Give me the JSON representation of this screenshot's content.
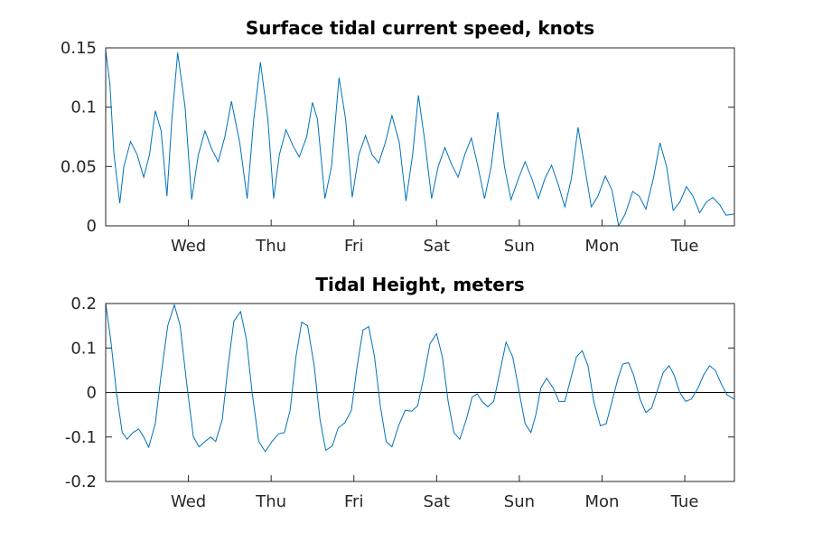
{
  "colors": {
    "series": "#0072BD",
    "axes": "#262626",
    "zero_line": "#000000"
  },
  "chart_data": [
    {
      "type": "line",
      "title": "Surface tidal current speed, knots",
      "xlabel": "",
      "ylabel": "",
      "xlim": [
        0,
        7.6
      ],
      "ylim": [
        0,
        0.15
      ],
      "x_ticks": [
        {
          "label": "Wed",
          "x": 1
        },
        {
          "label": "Thu",
          "x": 2
        },
        {
          "label": "Fri",
          "x": 3
        },
        {
          "label": "Sat",
          "x": 4
        },
        {
          "label": "Sun",
          "x": 5
        },
        {
          "label": "Mon",
          "x": 6
        },
        {
          "label": "Tue",
          "x": 7
        }
      ],
      "y_ticks": [
        {
          "label": "0",
          "y": 0
        },
        {
          "label": "0.05",
          "y": 0.05
        },
        {
          "label": "0.1",
          "y": 0.1
        },
        {
          "label": "0.15",
          "y": 0.15
        }
      ],
      "grid": false,
      "series": [
        {
          "x": [
            0.0,
            0.05,
            0.1,
            0.17,
            0.22,
            0.3,
            0.38,
            0.46,
            0.53,
            0.6,
            0.67,
            0.74,
            0.8,
            0.87,
            0.96,
            1.04,
            1.12,
            1.2,
            1.28,
            1.36,
            1.44,
            1.52,
            1.62,
            1.71,
            1.79,
            1.87,
            1.96,
            2.03,
            2.1,
            2.18,
            2.26,
            2.34,
            2.43,
            2.5,
            2.56,
            2.65,
            2.73,
            2.82,
            2.9,
            2.98,
            3.06,
            3.14,
            3.22,
            3.3,
            3.38,
            3.46,
            3.55,
            3.63,
            3.71,
            3.78,
            3.86,
            3.94,
            4.02,
            4.1,
            4.18,
            4.26,
            4.34,
            4.42,
            4.5,
            4.58,
            4.66,
            4.74,
            4.82,
            4.9,
            4.99,
            5.07,
            5.15,
            5.23,
            5.31,
            5.39,
            5.47,
            5.55,
            5.63,
            5.71,
            5.79,
            5.87,
            5.95,
            6.04,
            6.12,
            6.2,
            6.28,
            6.37,
            6.45,
            6.53,
            6.62,
            6.7,
            6.78,
            6.86,
            6.94,
            7.02,
            7.1,
            7.18,
            7.26,
            7.34,
            7.42,
            7.5,
            7.6
          ],
          "y": [
            0.148,
            0.12,
            0.06,
            0.019,
            0.05,
            0.071,
            0.06,
            0.041,
            0.06,
            0.097,
            0.08,
            0.025,
            0.09,
            0.146,
            0.1,
            0.022,
            0.06,
            0.08,
            0.065,
            0.054,
            0.075,
            0.105,
            0.07,
            0.023,
            0.09,
            0.138,
            0.09,
            0.023,
            0.06,
            0.081,
            0.068,
            0.058,
            0.075,
            0.104,
            0.09,
            0.023,
            0.05,
            0.125,
            0.09,
            0.024,
            0.06,
            0.076,
            0.06,
            0.053,
            0.07,
            0.093,
            0.07,
            0.021,
            0.06,
            0.11,
            0.07,
            0.023,
            0.05,
            0.066,
            0.052,
            0.041,
            0.06,
            0.074,
            0.05,
            0.023,
            0.05,
            0.096,
            0.05,
            0.022,
            0.04,
            0.054,
            0.04,
            0.023,
            0.04,
            0.051,
            0.035,
            0.016,
            0.04,
            0.083,
            0.05,
            0.016,
            0.025,
            0.042,
            0.03,
            0.0,
            0.01,
            0.029,
            0.025,
            0.014,
            0.04,
            0.07,
            0.05,
            0.013,
            0.02,
            0.033,
            0.025,
            0.011,
            0.02,
            0.024,
            0.018,
            0.009,
            0.01
          ]
        }
      ]
    },
    {
      "type": "line",
      "title": "Tidal Height, meters",
      "xlabel": "",
      "ylabel": "",
      "xlim": [
        0,
        7.6
      ],
      "ylim": [
        -0.2,
        0.2
      ],
      "x_ticks": [
        {
          "label": "Wed",
          "x": 1
        },
        {
          "label": "Thu",
          "x": 2
        },
        {
          "label": "Fri",
          "x": 3
        },
        {
          "label": "Sat",
          "x": 4
        },
        {
          "label": "Sun",
          "x": 5
        },
        {
          "label": "Mon",
          "x": 6
        },
        {
          "label": "Tue",
          "x": 7
        }
      ],
      "y_ticks": [
        {
          "label": "-0.2",
          "y": -0.2
        },
        {
          "label": "-0.1",
          "y": -0.1
        },
        {
          "label": "0",
          "y": 0
        },
        {
          "label": "0.1",
          "y": 0.1
        },
        {
          "label": "0.2",
          "y": 0.2
        }
      ],
      "zero_line": true,
      "grid": false,
      "series": [
        {
          "x": [
            0.0,
            0.06,
            0.13,
            0.2,
            0.26,
            0.33,
            0.4,
            0.46,
            0.52,
            0.6,
            0.67,
            0.75,
            0.83,
            0.9,
            0.98,
            1.06,
            1.13,
            1.2,
            1.27,
            1.33,
            1.41,
            1.48,
            1.55,
            1.63,
            1.7,
            1.77,
            1.85,
            1.93,
            2.01,
            2.09,
            2.16,
            2.23,
            2.3,
            2.37,
            2.44,
            2.52,
            2.59,
            2.66,
            2.74,
            2.81,
            2.89,
            2.97,
            3.04,
            3.11,
            3.18,
            3.25,
            3.32,
            3.39,
            3.46,
            3.54,
            3.62,
            3.7,
            3.77,
            3.84,
            3.92,
            4.0,
            4.07,
            4.14,
            4.21,
            4.28,
            4.36,
            4.43,
            4.49,
            4.55,
            4.62,
            4.69,
            4.77,
            4.84,
            4.92,
            5.0,
            5.07,
            5.14,
            5.2,
            5.26,
            5.33,
            5.41,
            5.48,
            5.55,
            5.62,
            5.69,
            5.76,
            5.83,
            5.9,
            5.98,
            6.05,
            6.12,
            6.19,
            6.25,
            6.32,
            6.38,
            6.46,
            6.53,
            6.6,
            6.67,
            6.74,
            6.81,
            6.87,
            6.94,
            7.01,
            7.08,
            7.16,
            7.23,
            7.3,
            7.37,
            7.44,
            7.51,
            7.6
          ],
          "y": [
            0.2,
            0.12,
            0.0,
            -0.09,
            -0.105,
            -0.09,
            -0.082,
            -0.1,
            -0.123,
            -0.07,
            0.04,
            0.15,
            0.197,
            0.15,
            0.02,
            -0.1,
            -0.122,
            -0.11,
            -0.1,
            -0.11,
            -0.06,
            0.06,
            0.16,
            0.182,
            0.12,
            0.0,
            -0.11,
            -0.133,
            -0.11,
            -0.093,
            -0.09,
            -0.04,
            0.08,
            0.158,
            0.15,
            0.06,
            -0.06,
            -0.13,
            -0.12,
            -0.08,
            -0.068,
            -0.04,
            0.06,
            0.14,
            0.148,
            0.08,
            -0.03,
            -0.11,
            -0.122,
            -0.075,
            -0.04,
            -0.042,
            -0.03,
            0.03,
            0.11,
            0.132,
            0.08,
            -0.02,
            -0.09,
            -0.105,
            -0.06,
            -0.01,
            -0.003,
            -0.02,
            -0.032,
            -0.02,
            0.05,
            0.113,
            0.08,
            0.0,
            -0.07,
            -0.09,
            -0.05,
            0.01,
            0.032,
            0.01,
            -0.02,
            -0.02,
            0.03,
            0.08,
            0.094,
            0.06,
            -0.02,
            -0.075,
            -0.07,
            -0.02,
            0.03,
            0.064,
            0.067,
            0.04,
            -0.015,
            -0.045,
            -0.035,
            0.005,
            0.045,
            0.06,
            0.04,
            0.0,
            -0.02,
            -0.015,
            0.01,
            0.04,
            0.06,
            0.05,
            0.02,
            -0.005,
            -0.015
          ]
        }
      ]
    }
  ]
}
